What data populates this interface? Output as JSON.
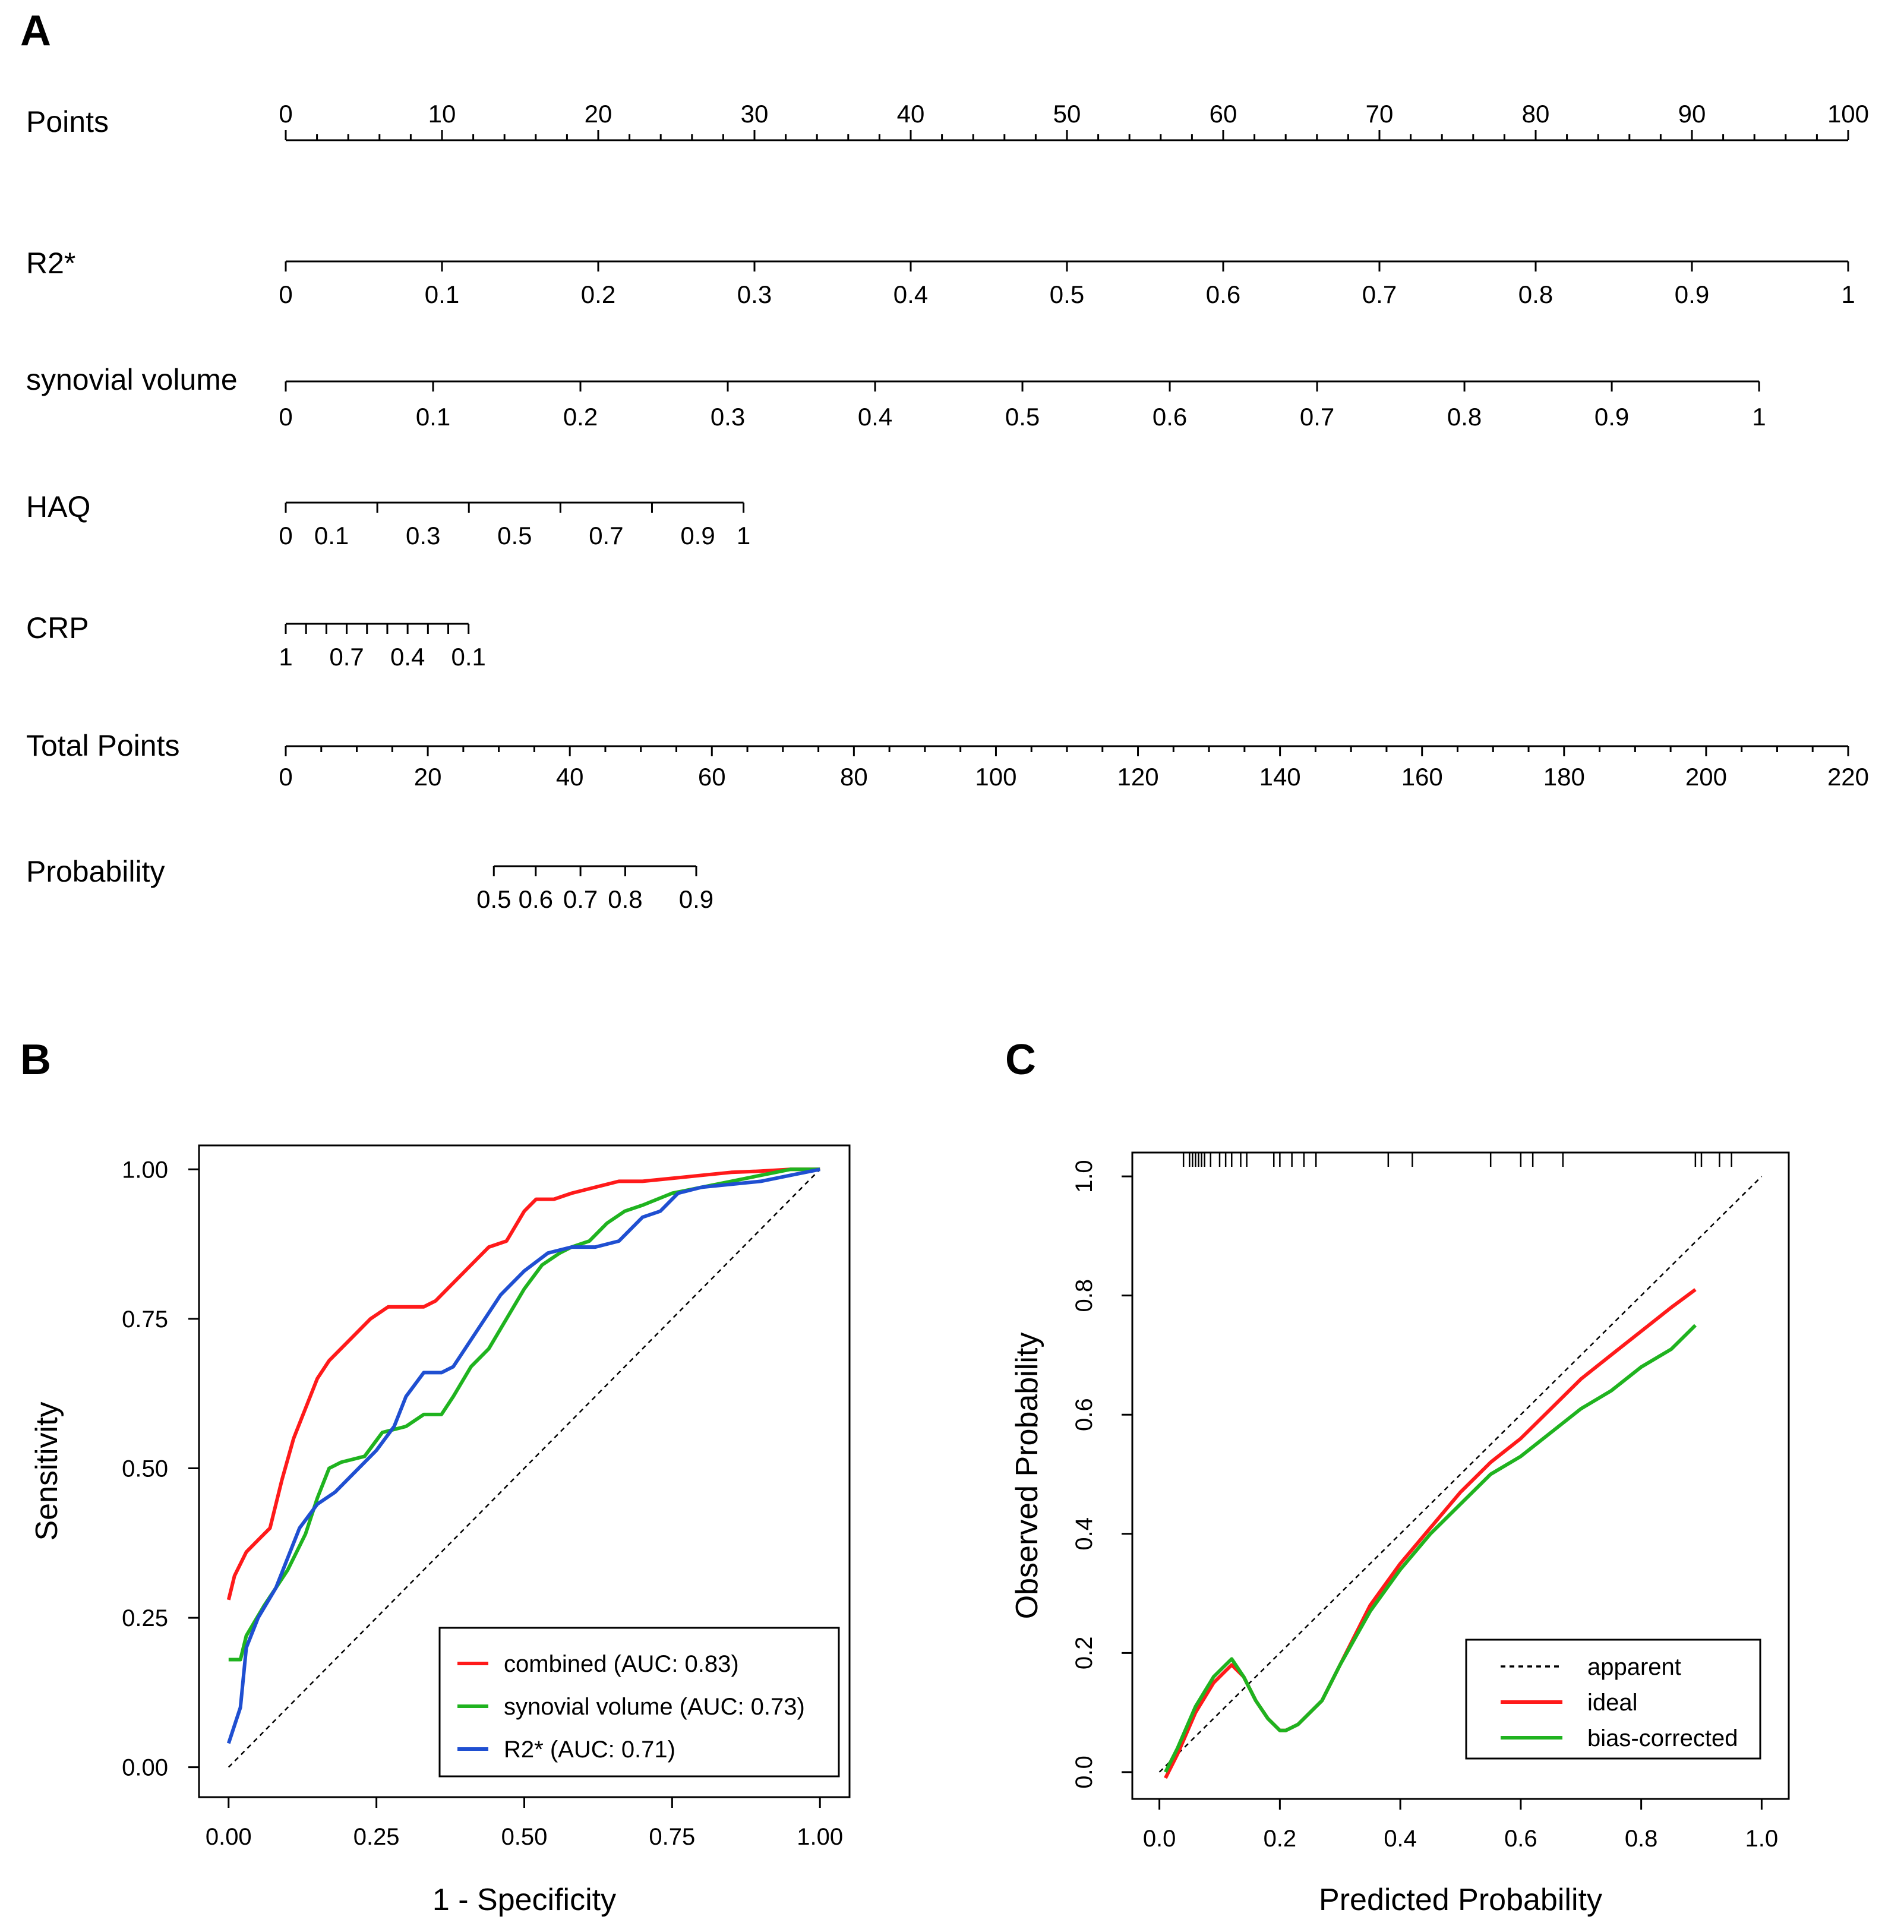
{
  "panels": {
    "A": "A",
    "B": "B",
    "C": "C"
  },
  "colors": {
    "red": "#ff1a1a",
    "green": "#1fb31f",
    "blue": "#1f4fd1",
    "black": "#000000"
  },
  "chart_data": [
    {
      "id": "nomogram",
      "type": "nomogram",
      "rows": [
        {
          "key": "points",
          "label": "Points",
          "domain": [
            0,
            100
          ],
          "tick_step": 2,
          "labels": [
            "0",
            "10",
            "20",
            "30",
            "40",
            "50",
            "60",
            "70",
            "80",
            "90",
            "100"
          ],
          "label_values": [
            0,
            10,
            20,
            30,
            40,
            50,
            60,
            70,
            80,
            90,
            100
          ],
          "label_side": "above"
        },
        {
          "key": "r2star",
          "label": "R2*",
          "domain": [
            0,
            1
          ],
          "labels": [
            "0",
            "0.1",
            "0.2",
            "0.3",
            "0.4",
            "0.5",
            "0.6",
            "0.7",
            "0.8",
            "0.9",
            "1"
          ],
          "label_values": [
            0,
            0.1,
            0.2,
            0.3,
            0.4,
            0.5,
            0.6,
            0.7,
            0.8,
            0.9,
            1
          ],
          "points_range": [
            0,
            100
          ],
          "label_side": "below"
        },
        {
          "key": "synovial",
          "label": "synovial volume",
          "domain": [
            0,
            1
          ],
          "labels": [
            "0",
            "0.1",
            "0.2",
            "0.3",
            "0.4",
            "0.5",
            "0.6",
            "0.7",
            "0.8",
            "0.9",
            "1"
          ],
          "label_values": [
            0,
            0.1,
            0.2,
            0.3,
            0.4,
            0.5,
            0.6,
            0.7,
            0.8,
            0.9,
            1
          ],
          "points_range": [
            0,
            94.3
          ],
          "label_side": "below"
        },
        {
          "key": "haq",
          "label": "HAQ",
          "domain": [
            0,
            1
          ],
          "tick_values": [
            0,
            0.2,
            0.4,
            0.6,
            0.8,
            1
          ],
          "labels": [
            "0",
            "0.1",
            "0.3",
            "0.5",
            "0.7",
            "0.9",
            "1"
          ],
          "label_values": [
            0,
            0.1,
            0.3,
            0.5,
            0.7,
            0.9,
            1
          ],
          "points_range": [
            0,
            29.3
          ],
          "label_side": "below"
        },
        {
          "key": "crp",
          "label": "CRP",
          "domain": [
            1,
            0.1
          ],
          "tick_values": [
            1,
            0.9,
            0.8,
            0.7,
            0.6,
            0.5,
            0.4,
            0.3,
            0.2,
            0.1
          ],
          "labels": [
            "1",
            "0.7",
            "0.4",
            "0.1"
          ],
          "label_values": [
            1,
            0.7,
            0.4,
            0.1
          ],
          "points_range": [
            0,
            11.7
          ],
          "label_side": "below"
        },
        {
          "key": "total",
          "label": "Total Points",
          "domain": [
            0,
            220
          ],
          "tick_step": 5,
          "labels": [
            "0",
            "20",
            "40",
            "60",
            "80",
            "100",
            "120",
            "140",
            "160",
            "180",
            "200",
            "220"
          ],
          "label_values": [
            0,
            20,
            40,
            60,
            80,
            100,
            120,
            140,
            160,
            180,
            200,
            220
          ],
          "label_side": "below"
        },
        {
          "key": "prob",
          "label": "Probability",
          "tick_values": [
            0.5,
            0.6,
            0.7,
            0.8,
            0.9
          ],
          "tick_total_points": [
            29.3,
            35.2,
            41.5,
            47.8,
            57.8
          ],
          "labels": [
            "0.5",
            "0.6",
            "0.7",
            "0.8",
            "0.9"
          ],
          "label_values": [
            0.5,
            0.6,
            0.7,
            0.8,
            0.9
          ],
          "label_side": "below"
        }
      ]
    },
    {
      "id": "roc",
      "type": "line",
      "title": "",
      "xlabel": "1 - Specificity",
      "ylabel": "Sensitivity",
      "xlim": [
        -0.05,
        1.05
      ],
      "ylim": [
        -0.05,
        1.04
      ],
      "xticks": [
        "0.00",
        "0.25",
        "0.50",
        "0.75",
        "1.00"
      ],
      "xtick_values": [
        0,
        0.25,
        0.5,
        0.75,
        1
      ],
      "yticks": [
        "0.00",
        "0.25",
        "0.50",
        "0.75",
        "1.00"
      ],
      "ytick_values": [
        0,
        0.25,
        0.5,
        0.75,
        1
      ],
      "reference_line": [
        [
          0,
          0
        ],
        [
          1,
          1
        ]
      ],
      "legend_position": "bottom-right",
      "series": [
        {
          "name": "combined (AUC: 0.83)",
          "color": "#ff1a1a",
          "x": [
            0,
            0.01,
            0.03,
            0.05,
            0.07,
            0.09,
            0.11,
            0.13,
            0.15,
            0.17,
            0.2,
            0.24,
            0.27,
            0.3,
            0.33,
            0.35,
            0.37,
            0.4,
            0.42,
            0.44,
            0.47,
            0.5,
            0.52,
            0.55,
            0.58,
            0.62,
            0.66,
            0.7,
            0.75,
            0.8,
            0.85,
            0.9,
            0.95,
            1.0
          ],
          "y": [
            0.28,
            0.32,
            0.36,
            0.38,
            0.4,
            0.48,
            0.55,
            0.6,
            0.65,
            0.68,
            0.71,
            0.75,
            0.77,
            0.77,
            0.77,
            0.78,
            0.8,
            0.83,
            0.85,
            0.87,
            0.88,
            0.93,
            0.95,
            0.95,
            0.96,
            0.97,
            0.98,
            0.98,
            0.985,
            0.99,
            0.995,
            0.997,
            1.0,
            1.0
          ]
        },
        {
          "name": "synovial volume (AUC: 0.73)",
          "color": "#1fb31f",
          "x": [
            0,
            0.02,
            0.03,
            0.06,
            0.1,
            0.13,
            0.15,
            0.17,
            0.19,
            0.23,
            0.26,
            0.3,
            0.33,
            0.36,
            0.38,
            0.41,
            0.44,
            0.47,
            0.5,
            0.53,
            0.56,
            0.58,
            0.61,
            0.64,
            0.67,
            0.7,
            0.75,
            0.8,
            0.85,
            0.9,
            0.95,
            1.0
          ],
          "y": [
            0.18,
            0.18,
            0.22,
            0.27,
            0.33,
            0.39,
            0.45,
            0.5,
            0.51,
            0.52,
            0.56,
            0.57,
            0.59,
            0.59,
            0.62,
            0.67,
            0.7,
            0.75,
            0.8,
            0.84,
            0.86,
            0.87,
            0.88,
            0.91,
            0.93,
            0.94,
            0.96,
            0.97,
            0.98,
            0.99,
            1.0,
            1.0
          ]
        },
        {
          "name": "R2* (AUC: 0.71)",
          "color": "#1f4fd1",
          "x": [
            0,
            0.02,
            0.03,
            0.05,
            0.08,
            0.1,
            0.12,
            0.15,
            0.18,
            0.21,
            0.25,
            0.28,
            0.3,
            0.33,
            0.36,
            0.38,
            0.42,
            0.46,
            0.5,
            0.54,
            0.58,
            0.62,
            0.66,
            0.7,
            0.73,
            0.76,
            0.8,
            0.85,
            0.9,
            0.95,
            1.0
          ],
          "y": [
            0.04,
            0.1,
            0.2,
            0.25,
            0.3,
            0.35,
            0.4,
            0.44,
            0.46,
            0.49,
            0.53,
            0.57,
            0.62,
            0.66,
            0.66,
            0.67,
            0.73,
            0.79,
            0.83,
            0.86,
            0.87,
            0.87,
            0.88,
            0.92,
            0.93,
            0.96,
            0.97,
            0.975,
            0.98,
            0.99,
            1.0
          ]
        }
      ]
    },
    {
      "id": "calibration",
      "type": "line",
      "title": "",
      "xlabel": "Predicted Probability",
      "ylabel": "Observed Probability",
      "xlim": [
        -0.045,
        1.045
      ],
      "ylim": [
        -0.045,
        1.04
      ],
      "xticks": [
        "0.0",
        "0.2",
        "0.4",
        "0.6",
        "0.8",
        "1.0"
      ],
      "xtick_values": [
        0,
        0.2,
        0.4,
        0.6,
        0.8,
        1.0
      ],
      "yticks": [
        "0.0",
        "0.2",
        "0.4",
        "0.6",
        "0.8",
        "1.0"
      ],
      "ytick_values": [
        0,
        0.2,
        0.4,
        0.6,
        0.8,
        1.0
      ],
      "legend_position": "bottom-right",
      "rug_x": [
        0.04,
        0.05,
        0.055,
        0.06,
        0.065,
        0.07,
        0.075,
        0.085,
        0.1,
        0.11,
        0.12,
        0.135,
        0.145,
        0.19,
        0.2,
        0.22,
        0.24,
        0.26,
        0.38,
        0.42,
        0.55,
        0.6,
        0.62,
        0.67,
        0.89,
        0.9,
        0.93,
        0.95
      ],
      "series": [
        {
          "name": "apparent",
          "color": "#000000",
          "style": "dashed",
          "x": [
            0,
            1
          ],
          "y": [
            0,
            1
          ]
        },
        {
          "name": "ideal",
          "color": "#ff1a1a",
          "x": [
            0.01,
            0.03,
            0.06,
            0.09,
            0.11,
            0.12,
            0.14,
            0.16,
            0.18,
            0.2,
            0.21,
            0.23,
            0.25,
            0.27,
            0.3,
            0.35,
            0.4,
            0.45,
            0.5,
            0.55,
            0.6,
            0.65,
            0.7,
            0.75,
            0.8,
            0.85,
            0.89
          ],
          "y": [
            -0.01,
            0.03,
            0.1,
            0.15,
            0.17,
            0.18,
            0.16,
            0.12,
            0.09,
            0.07,
            0.07,
            0.08,
            0.1,
            0.12,
            0.18,
            0.28,
            0.35,
            0.41,
            0.47,
            0.52,
            0.56,
            0.61,
            0.66,
            0.7,
            0.74,
            0.78,
            0.81
          ]
        },
        {
          "name": "bias-corrected",
          "color": "#1fb31f",
          "x": [
            0.01,
            0.03,
            0.06,
            0.09,
            0.11,
            0.12,
            0.14,
            0.16,
            0.18,
            0.2,
            0.21,
            0.23,
            0.25,
            0.27,
            0.3,
            0.35,
            0.4,
            0.45,
            0.5,
            0.55,
            0.6,
            0.65,
            0.7,
            0.75,
            0.8,
            0.85,
            0.89
          ],
          "y": [
            0.0,
            0.04,
            0.11,
            0.16,
            0.18,
            0.19,
            0.16,
            0.12,
            0.09,
            0.07,
            0.07,
            0.08,
            0.1,
            0.12,
            0.18,
            0.27,
            0.34,
            0.4,
            0.45,
            0.5,
            0.53,
            0.57,
            0.61,
            0.64,
            0.68,
            0.71,
            0.75
          ]
        }
      ]
    }
  ]
}
